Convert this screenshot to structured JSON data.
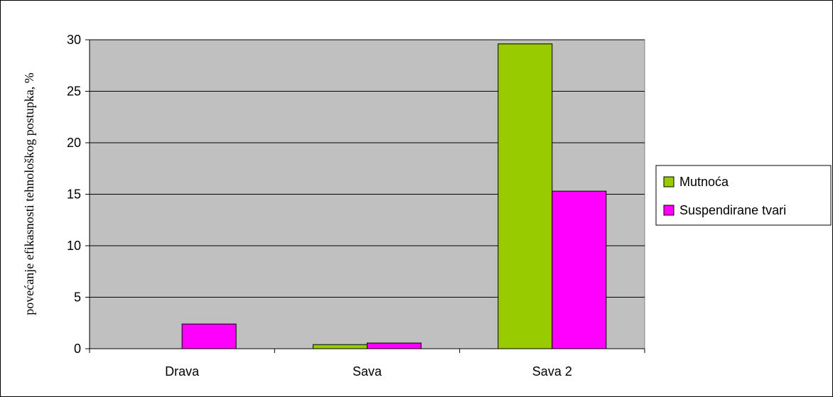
{
  "chart_data": {
    "type": "bar",
    "title": "",
    "xlabel": "",
    "ylabel": "povećanje efikasnosti tehnološkog postupka, %",
    "categories": [
      "Drava",
      "Sava",
      "Sava 2"
    ],
    "series": [
      {
        "name": "Mutnoća",
        "color": "#99cc00",
        "values": [
          0,
          0.4,
          29.6
        ]
      },
      {
        "name": "Suspendirane tvari",
        "color": "#ff00ff",
        "values": [
          2.4,
          0.55,
          15.3
        ]
      }
    ],
    "ylim": [
      0,
      30
    ],
    "yticks": [
      0,
      5,
      10,
      15,
      20,
      25,
      30
    ],
    "grid": true,
    "legend": "right",
    "plot_background": "#c0c0c0"
  }
}
